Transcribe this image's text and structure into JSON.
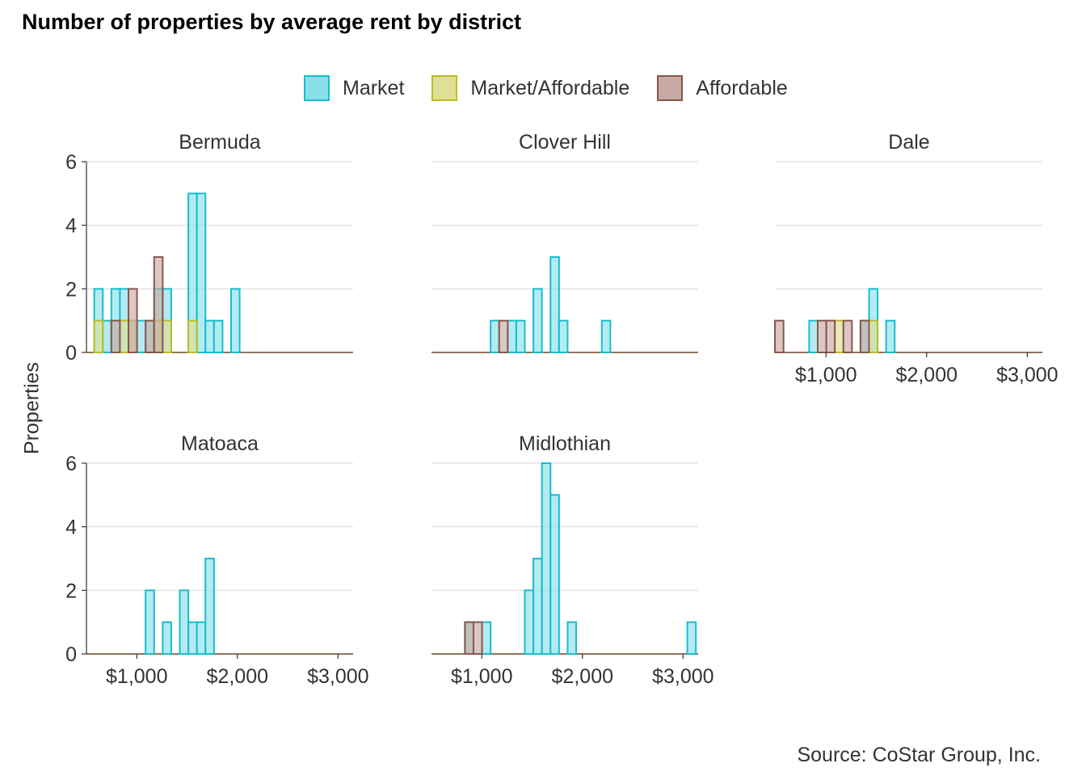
{
  "chart_data": {
    "type": "bar",
    "title": "Number of properties by average rent by district",
    "ylabel": "Properties",
    "source": "Source: CoStar Group, Inc.",
    "ylim": [
      0,
      6
    ],
    "xlim": [
      500,
      3150
    ],
    "bin_width": 85,
    "y_ticks": [
      0,
      2,
      4,
      6
    ],
    "x_ticks": [
      {
        "value": 1000,
        "label": "$1,000"
      },
      {
        "value": 2000,
        "label": "$2,000"
      },
      {
        "value": 3000,
        "label": "$3,000"
      }
    ],
    "gridlines": "horizontal",
    "legend_position": "top",
    "series_styles": [
      {
        "name": "Market",
        "fill": "#8ae0ea",
        "stroke": "#17becf"
      },
      {
        "name": "Market/Affordable",
        "fill": "#dfe095",
        "stroke": "#bcbd22"
      },
      {
        "name": "Affordable",
        "fill": "#c6aaa4",
        "stroke": "#8c564b"
      }
    ],
    "panels": [
      {
        "district": "Bermuda",
        "series": [
          {
            "name": "Market",
            "bins": [
              {
                "x": 620,
                "count": 2
              },
              {
                "x": 705,
                "count": 1
              },
              {
                "x": 790,
                "count": 2
              },
              {
                "x": 875,
                "count": 2
              },
              {
                "x": 960,
                "count": 1
              },
              {
                "x": 1045,
                "count": 1
              },
              {
                "x": 1130,
                "count": 1
              },
              {
                "x": 1215,
                "count": 2
              },
              {
                "x": 1300,
                "count": 2
              },
              {
                "x": 1555,
                "count": 5
              },
              {
                "x": 1640,
                "count": 5
              },
              {
                "x": 1725,
                "count": 1
              },
              {
                "x": 1810,
                "count": 1
              },
              {
                "x": 1980,
                "count": 2
              }
            ]
          },
          {
            "name": "Market/Affordable",
            "bins": [
              {
                "x": 620,
                "count": 1
              },
              {
                "x": 875,
                "count": 1
              },
              {
                "x": 960,
                "count": 1
              },
              {
                "x": 1215,
                "count": 1
              },
              {
                "x": 1300,
                "count": 1
              },
              {
                "x": 1555,
                "count": 1
              }
            ]
          },
          {
            "name": "Affordable",
            "bins": [
              {
                "x": 790,
                "count": 1
              },
              {
                "x": 960,
                "count": 2
              },
              {
                "x": 1130,
                "count": 1
              },
              {
                "x": 1215,
                "count": 3
              }
            ]
          }
        ]
      },
      {
        "district": "Clover Hill",
        "series": [
          {
            "name": "Market",
            "bins": [
              {
                "x": 1130,
                "count": 1
              },
              {
                "x": 1300,
                "count": 1
              },
              {
                "x": 1385,
                "count": 1
              },
              {
                "x": 1555,
                "count": 2
              },
              {
                "x": 1725,
                "count": 3
              },
              {
                "x": 1810,
                "count": 1
              },
              {
                "x": 2235,
                "count": 1
              }
            ]
          },
          {
            "name": "Market/Affordable",
            "bins": []
          },
          {
            "name": "Affordable",
            "bins": [
              {
                "x": 1215,
                "count": 1
              }
            ]
          }
        ]
      },
      {
        "district": "Dale",
        "series": [
          {
            "name": "Market",
            "bins": [
              {
                "x": 875,
                "count": 1
              },
              {
                "x": 1385,
                "count": 1
              },
              {
                "x": 1470,
                "count": 2
              },
              {
                "x": 1640,
                "count": 1
              }
            ]
          },
          {
            "name": "Market/Affordable",
            "bins": [
              {
                "x": 1130,
                "count": 1
              },
              {
                "x": 1470,
                "count": 1
              }
            ]
          },
          {
            "name": "Affordable",
            "bins": [
              {
                "x": 535,
                "count": 1
              },
              {
                "x": 960,
                "count": 1
              },
              {
                "x": 1045,
                "count": 1
              },
              {
                "x": 1215,
                "count": 1
              },
              {
                "x": 1385,
                "count": 1
              }
            ]
          }
        ]
      },
      {
        "district": "Matoaca",
        "series": [
          {
            "name": "Market",
            "bins": [
              {
                "x": 1130,
                "count": 2
              },
              {
                "x": 1300,
                "count": 1
              },
              {
                "x": 1470,
                "count": 2
              },
              {
                "x": 1555,
                "count": 1
              },
              {
                "x": 1640,
                "count": 1
              },
              {
                "x": 1725,
                "count": 3
              }
            ]
          },
          {
            "name": "Market/Affordable",
            "bins": []
          },
          {
            "name": "Affordable",
            "bins": []
          }
        ]
      },
      {
        "district": "Midlothian",
        "series": [
          {
            "name": "Market",
            "bins": [
              {
                "x": 875,
                "count": 1
              },
              {
                "x": 1045,
                "count": 1
              },
              {
                "x": 1470,
                "count": 2
              },
              {
                "x": 1555,
                "count": 3
              },
              {
                "x": 1640,
                "count": 6
              },
              {
                "x": 1725,
                "count": 5
              },
              {
                "x": 1895,
                "count": 1
              },
              {
                "x": 3085,
                "count": 1
              }
            ]
          },
          {
            "name": "Market/Affordable",
            "bins": []
          },
          {
            "name": "Affordable",
            "bins": [
              {
                "x": 875,
                "count": 1
              },
              {
                "x": 960,
                "count": 1
              }
            ]
          }
        ]
      }
    ]
  }
}
